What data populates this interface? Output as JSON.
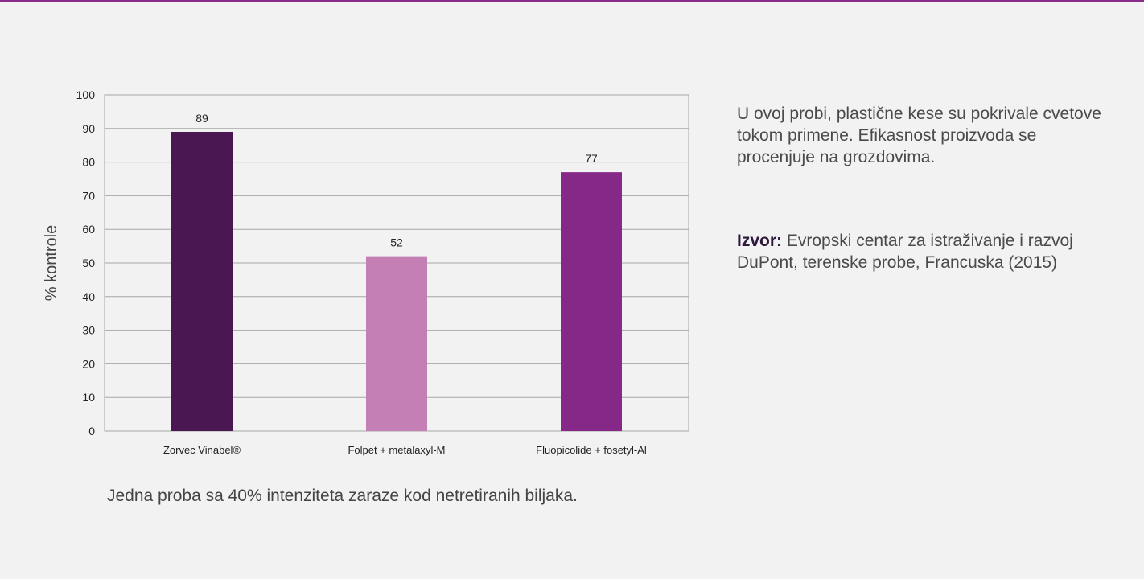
{
  "colors": {
    "background": "#f2f2f2",
    "top_border": "#8a2a8c",
    "bar_1": "#4b1752",
    "bar_2": "#c47fb4",
    "bar_3": "#862888",
    "grid": "#a6a6a6"
  },
  "chart_data": {
    "type": "bar",
    "categories": [
      "Zorvec Vinabel®",
      "Folpet + metalaxyl-M",
      "Fluopicolide + fosetyl-Al"
    ],
    "values": [
      89,
      52,
      77
    ],
    "data_labels": [
      "89",
      "52",
      "77"
    ],
    "ylabel": "% kontrole",
    "ylim": [
      0,
      100
    ],
    "yticks": [
      0,
      10,
      20,
      30,
      40,
      50,
      60,
      70,
      80,
      90,
      100
    ],
    "grid": true,
    "legend": "none"
  },
  "side": {
    "note": "U ovoj probi, plastične kese su pokrivale cvetove tokom primene. Efikasnost proizvoda se procenjuje na grozdovima.",
    "source_label": "Izvor:",
    "source_text": "Evropski centar za istraživanje i razvoj DuPont, terenske probe, Francuska (2015)"
  },
  "caption": "Jedna proba sa 40% intenziteta zaraze kod netretiranih biljaka."
}
